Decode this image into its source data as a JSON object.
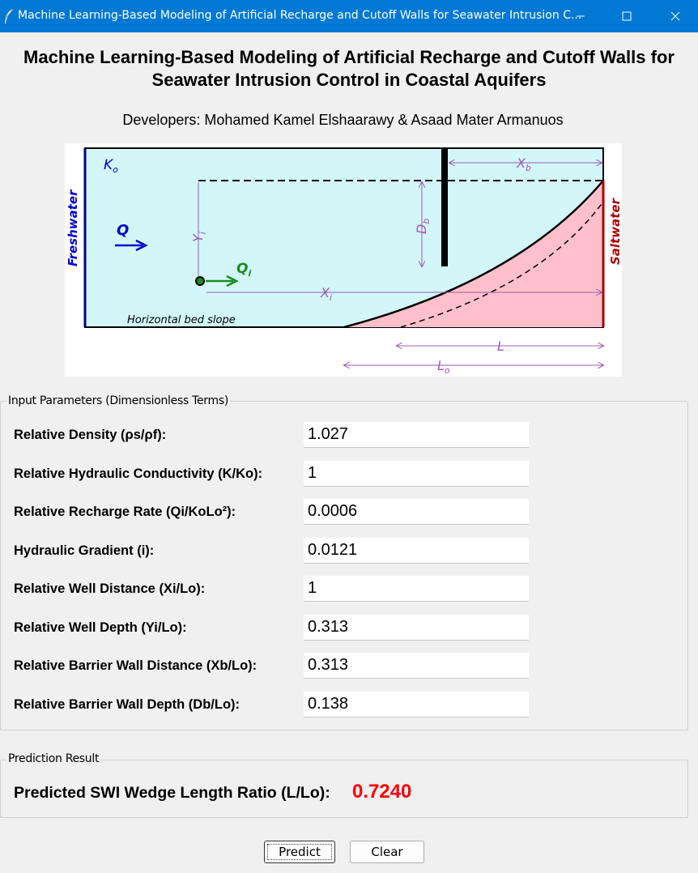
{
  "window": {
    "title": "Machine Learning-Based Modeling of Artificial Recharge and Cutoff Walls for Seawater Intrusion C...",
    "minimize_glyph": "—",
    "maximize_glyph": "☐",
    "close_glyph": "✕",
    "app_icon": "feather-icon"
  },
  "header": {
    "title": "Machine Learning-Based Modeling of Artificial Recharge and Cutoff Walls for Seawater Intrusion Control in Coastal Aquifers",
    "developers": "Developers: Mohamed Kamel Elshaarawy & Asaad Mater Armanuos"
  },
  "diagram": {
    "labels": {
      "ko": "K",
      "ko_sub": "o",
      "freshwater": "Freshwater",
      "saltwater": "Saltwater",
      "q": "Q",
      "qi": "Q",
      "qi_sub": "i",
      "yi": "Y",
      "yi_sub": "i",
      "xi": "X",
      "xi_sub": "i",
      "xb": "X",
      "xb_sub": "b",
      "db": "D",
      "db_sub": "b",
      "bed": "Horizontal bed slope",
      "l": "L",
      "lo": "L",
      "lo_sub": "o"
    },
    "colors": {
      "aquifer": "#d3f7f9",
      "wedge": "#ffc0cb",
      "freshwater_boundary": "#00008b",
      "saltwater_boundary": "#b00000",
      "dimension": "#9b59b6",
      "recharge": "#1a8c1a"
    }
  },
  "inputs": {
    "legend": "Input Parameters (Dimensionless Terms)",
    "params": [
      {
        "label": "Relative Density (ρs/ρf):",
        "value": "1.027"
      },
      {
        "label": "Relative Hydraulic Conductivity (K/Ko):",
        "value": "1"
      },
      {
        "label": "Relative Recharge Rate (Qi/KoLo²):",
        "value": "0.0006"
      },
      {
        "label": "Hydraulic Gradient (i):",
        "value": "0.0121"
      },
      {
        "label": "Relative Well Distance (Xi/Lo):",
        "value": "1"
      },
      {
        "label": "Relative Well Depth (Yi/Lo):",
        "value": "0.313"
      },
      {
        "label": "Relative Barrier Wall Distance (Xb/Lo):",
        "value": "0.313"
      },
      {
        "label": "Relative Barrier Wall Depth (Db/Lo):",
        "value": "0.138"
      }
    ]
  },
  "result": {
    "legend": "Prediction Result",
    "label": "Predicted SWI Wedge Length Ratio (L/Lo):",
    "value": "0.7240",
    "value_color": "#ff0000"
  },
  "buttons": {
    "predict": "Predict",
    "clear": "Clear"
  }
}
